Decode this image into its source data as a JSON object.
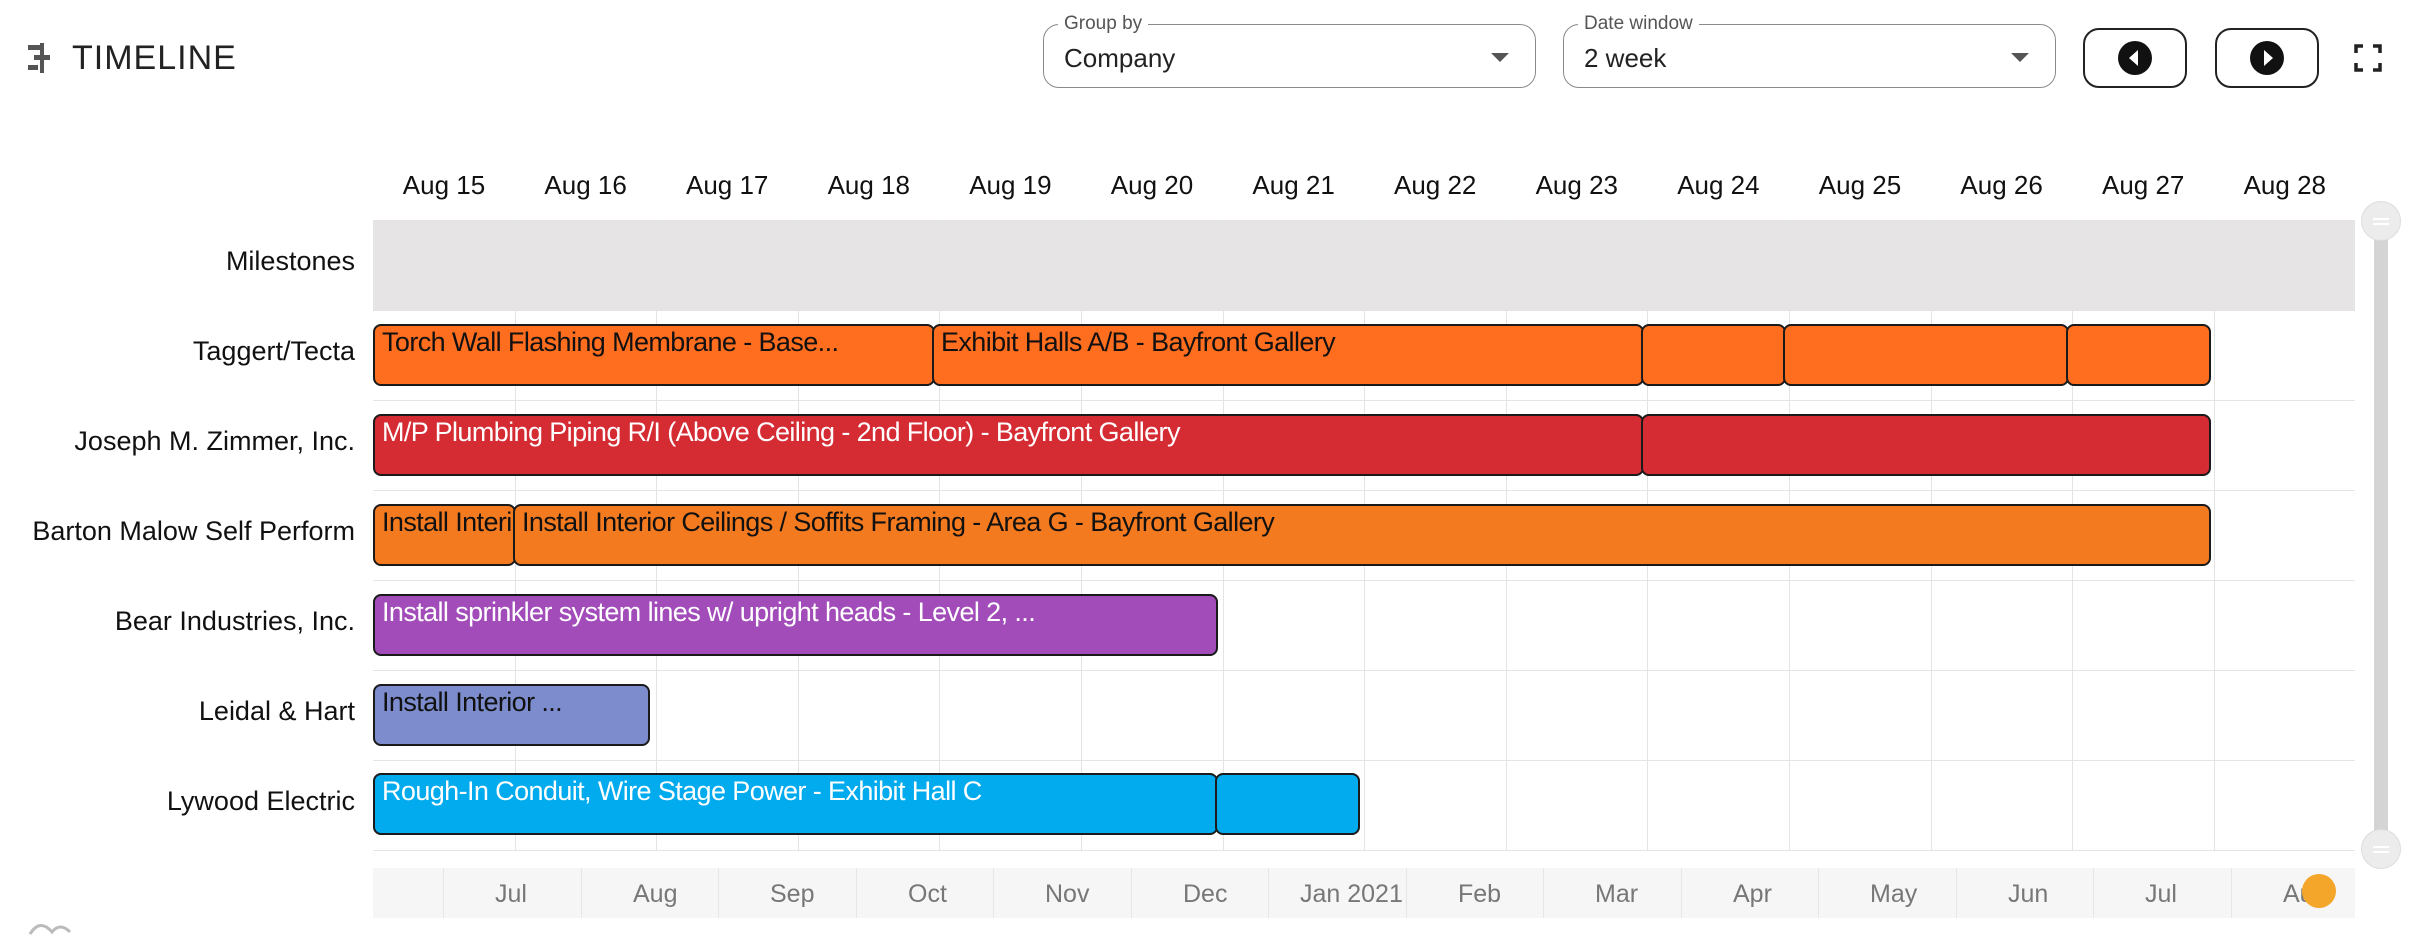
{
  "app": {
    "title": "TIMELINE",
    "icon": "timeline-icon"
  },
  "controls": {
    "group_by": {
      "legend": "Group by",
      "value": "Company"
    },
    "date_window": {
      "legend": "Date window",
      "value": "2 week"
    },
    "prev_icon": "chevron-left-circle-icon",
    "next_icon": "chevron-right-circle-icon",
    "fullscreen_icon": "fullscreen-icon"
  },
  "dates": [
    "Aug 15",
    "Aug 16",
    "Aug 17",
    "Aug 18",
    "Aug 19",
    "Aug 20",
    "Aug 21",
    "Aug 22",
    "Aug 23",
    "Aug 24",
    "Aug 25",
    "Aug 26",
    "Aug 27",
    "Aug 28"
  ],
  "rows": [
    "Milestones",
    "Taggert/Tecta",
    "Joseph M. Zimmer, Inc.",
    "Barton Malow Self Perform",
    "Bear Industries, Inc.",
    "Leidal & Hart",
    "Lywood Electric"
  ],
  "colors": {
    "orange_bright": "#ff6d1f",
    "red": "#d52b33",
    "orange": "#f47a20",
    "purple": "#a24cba",
    "periwinkle": "#7c8ccc",
    "blue": "#02aaee",
    "milestone_band": "#e6e4e4",
    "range_handle": "#f4a62a"
  },
  "bars": {
    "taggert_1": "Torch Wall Flashing Membrane - Base...",
    "taggert_2": "Exhibit Halls A/B - Bayfront Gallery",
    "zimmer_1": "M/P Plumbing Piping R/I (Above Ceiling - 2nd Floor) - Bayfront Gallery",
    "barton_1": "Install Interi",
    "barton_2": "Install Interior Ceilings / Soffits Framing - Area G - Bayfront Gallery",
    "bear_1": "Install sprinkler system lines w/ upright heads - Level 2, ...",
    "leidal_1": "Install Interior ...",
    "lywood_1": "Rough-In Conduit, Wire Stage Power - Exhibit Hall C"
  },
  "range_months": [
    "Jul",
    "Aug",
    "Sep",
    "Oct",
    "Nov",
    "Dec",
    "Jan 2021",
    "Feb",
    "Mar",
    "Apr",
    "May",
    "Jun",
    "Jul",
    "Aug"
  ]
}
